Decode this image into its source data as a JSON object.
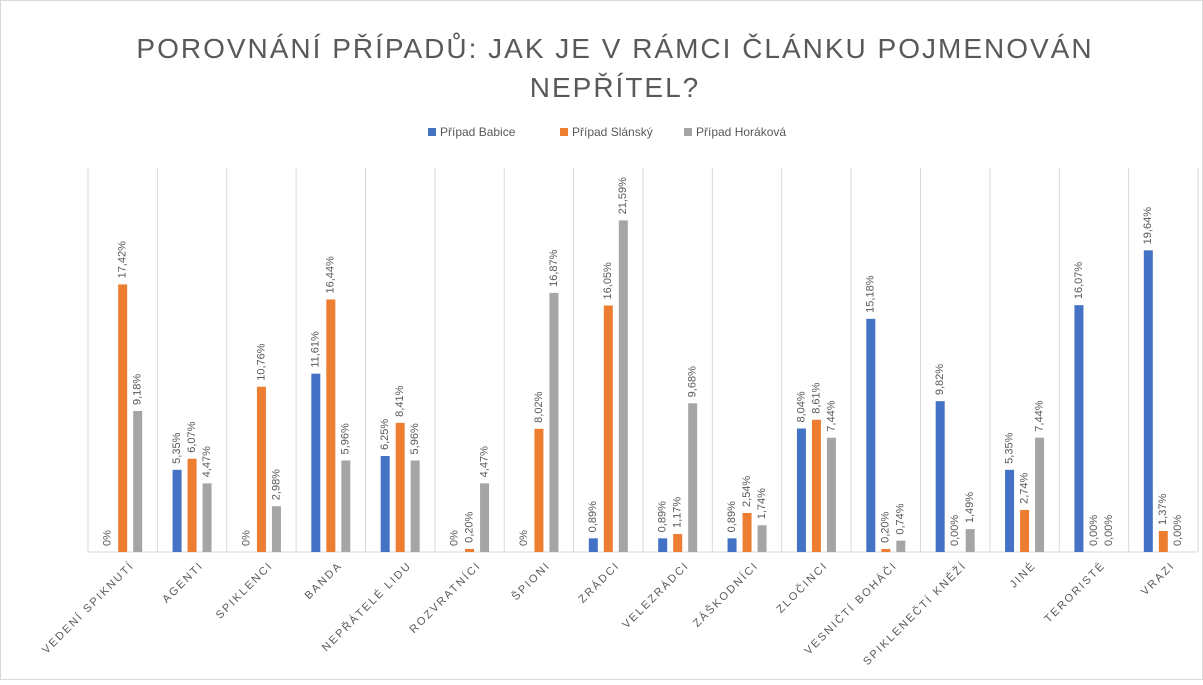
{
  "chart_data": {
    "type": "bar",
    "title": [
      "POROVNÁNÍ PŘÍPADŮ: JAK JE V RÁMCI ČLÁNKU POJMENOVÁN",
      "NEPŘÍTEL?"
    ],
    "categories": [
      "VEDENÍ SPIKNUTÍ",
      "AGENTI",
      "SPIKLENCI",
      "BANDA",
      "NEPŘÁTELÉ LIDU",
      "ROZVRATNÍCI",
      "ŠPIONI",
      "ZRÁDCI",
      "VELEZRÁDCI",
      "ZÁŠKODNÍCI",
      "ZLOČINCI",
      "VESNIČTÍ BOHÁČI",
      "SPIKLENEČTÍ KNĚŽÍ",
      "JINÉ",
      "TERORISTÉ",
      "VRAZI"
    ],
    "series": [
      {
        "name": "Případ Babice",
        "color": "#4472c4",
        "values": [
          0,
          5.35,
          0,
          11.61,
          6.25,
          0,
          0,
          0.89,
          0.89,
          0.89,
          8.04,
          15.18,
          9.82,
          5.35,
          16.07,
          19.64
        ],
        "value_labels": [
          "0%",
          "5,35%",
          "0%",
          "11,61%",
          "6,25%",
          "0%",
          "0%",
          "0,89%",
          "0,89%",
          "0,89%",
          "8,04%",
          "15,18%",
          "9,82%",
          "5,35%",
          "16,07%",
          "19,64%"
        ]
      },
      {
        "name": "Případ Slánský",
        "color": "#ed7d31",
        "values": [
          17.42,
          6.07,
          10.76,
          16.44,
          8.41,
          0.2,
          8.02,
          16.05,
          1.17,
          2.54,
          8.61,
          0.2,
          0,
          2.74,
          0,
          1.37
        ],
        "value_labels": [
          "17,42%",
          "6,07%",
          "10,76%",
          "16,44%",
          "8,41%",
          "0,20%",
          "8,02%",
          "16,05%",
          "1,17%",
          "2,54%",
          "8,61%",
          "0,20%",
          "0,00%",
          "2,74%",
          "0,00%",
          "1,37%"
        ]
      },
      {
        "name": "Případ Horáková",
        "color": "#a5a5a5",
        "values": [
          9.18,
          4.47,
          2.98,
          5.96,
          5.96,
          4.47,
          16.87,
          21.59,
          9.68,
          1.74,
          7.44,
          0.74,
          1.49,
          7.44,
          0,
          0
        ],
        "value_labels": [
          "9,18%",
          "4,47%",
          "2,98%",
          "5,96%",
          "5,96%",
          "4,47%",
          "16,87%",
          "21,59%",
          "9,68%",
          "1,74%",
          "7,44%",
          "0,74%",
          "1,49%",
          "7,44%",
          "0,00%",
          "0,00%"
        ]
      }
    ],
    "ylim": [
      0,
      25
    ],
    "legend": "top"
  }
}
